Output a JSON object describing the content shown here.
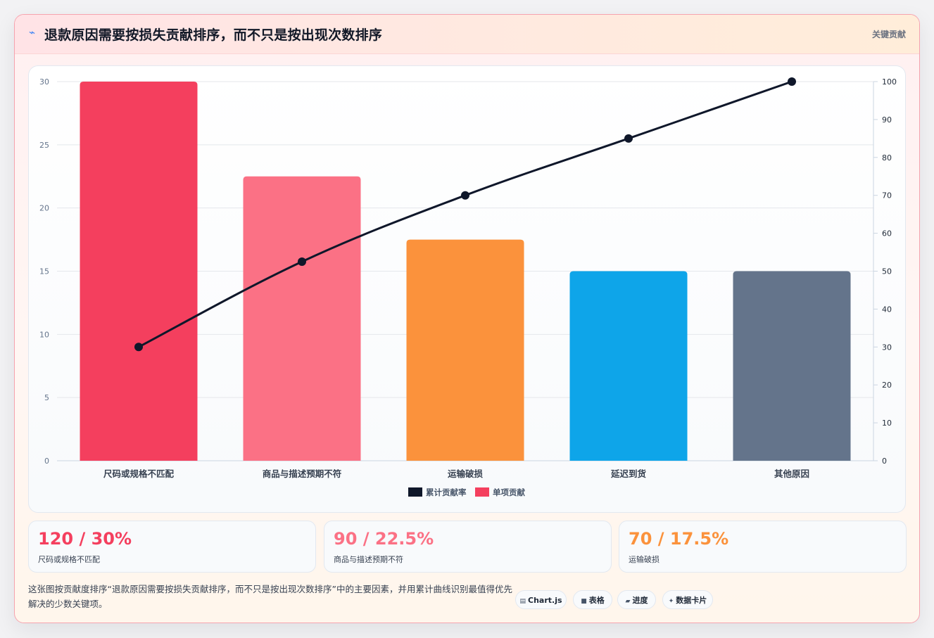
{
  "header": {
    "icon": "bolt-icon",
    "title": "退款原因需要按损失贡献排序，而不只是按出现次数排序",
    "tag": "关键贡献"
  },
  "chart_data": {
    "type": "bar",
    "categories": [
      "尺码或规格不匹配",
      "商品与描述预期不符",
      "运输破损",
      "延迟到货",
      "其他原因"
    ],
    "series": [
      {
        "name": "单项贡献",
        "type": "bar",
        "axis": "left",
        "values": [
          30,
          22.5,
          17.5,
          15,
          15
        ],
        "colors": [
          "#f43f5e",
          "#fb7185",
          "#fb923c",
          "#0ea5e9",
          "#64748b"
        ]
      },
      {
        "name": "累计贡献率",
        "type": "line",
        "axis": "right",
        "values": [
          30,
          52.5,
          70,
          85,
          100
        ],
        "color": "#0f172a"
      }
    ],
    "y_left": {
      "min": 0,
      "max": 30,
      "ticks": [
        0,
        5,
        10,
        15,
        20,
        25,
        30
      ]
    },
    "y_right": {
      "min": 0,
      "max": 100,
      "ticks": [
        0,
        10,
        20,
        30,
        40,
        50,
        60,
        70,
        80,
        90,
        100
      ]
    },
    "legend": {
      "position": "bottom",
      "order": [
        "累计贡献率",
        "单项贡献"
      ]
    },
    "grid": true
  },
  "stats": [
    {
      "value": "120 / 30%",
      "label": "尺码或规格不匹配",
      "color": "#f43f5e"
    },
    {
      "value": "90 / 22.5%",
      "label": "商品与描述预期不符",
      "color": "#fb7185"
    },
    {
      "value": "70 / 17.5%",
      "label": "运输破损",
      "color": "#fb923c"
    }
  ],
  "footer": {
    "text": "这张图按贡献度排序“退款原因需要按损失贡献排序，而不只是按出现次数排序”中的主要因素，并用累计曲线识别最值得优先解决的少数关键项。",
    "pills": [
      {
        "icon": "chart-icon",
        "glyph": "▤",
        "label": "Chart.js"
      },
      {
        "icon": "table-icon",
        "glyph": "■",
        "label": "表格"
      },
      {
        "icon": "progress-icon",
        "glyph": "▰",
        "label": "进度"
      },
      {
        "icon": "sparkle-icon",
        "glyph": "✦",
        "label": "数据卡片"
      }
    ]
  }
}
